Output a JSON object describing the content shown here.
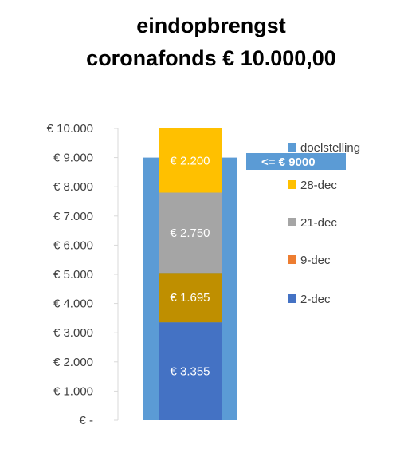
{
  "title_line1": "eindopbrengst",
  "title_line2": "coronafonds € 10.000,00",
  "target_annotation": "<= € 9000",
  "chart_data": {
    "type": "bar",
    "stacked": true,
    "title": "eindopbrengst coronafonds € 10.000,00",
    "ylim": [
      0,
      10000
    ],
    "y_ticks": [
      0,
      1000,
      2000,
      3000,
      4000,
      5000,
      6000,
      7000,
      8000,
      9000,
      10000
    ],
    "y_tick_labels": [
      "€ -",
      "€ 1.000",
      "€ 2.000",
      "€ 3.000",
      "€ 4.000",
      "€ 5.000",
      "€ 6.000",
      "€ 7.000",
      "€ 8.000",
      "€ 9.000",
      "€ 10.000"
    ],
    "legend_position": "right",
    "target": {
      "name": "doelstelling",
      "value": 9000,
      "color": "#5B9BD5"
    },
    "series": [
      {
        "name": "2-dec",
        "value": 3355,
        "label": "€ 3.355",
        "color": "#4472C4"
      },
      {
        "name": "9-dec",
        "value": 1695,
        "label": "€ 1.695",
        "color": "#BF8F00",
        "legend_color": "#ED7D31"
      },
      {
        "name": "21-dec",
        "value": 2750,
        "label": "€ 2.750",
        "color": "#A5A5A5"
      },
      {
        "name": "28-dec",
        "value": 2200,
        "label": "€ 2.200",
        "color": "#FFC000"
      }
    ],
    "legend": [
      {
        "name": "doelstelling",
        "color": "#5B9BD5"
      },
      {
        "name": "28-dec",
        "color": "#FFC000"
      },
      {
        "name": "21-dec",
        "color": "#A5A5A5"
      },
      {
        "name": "9-dec",
        "color": "#ED7D31"
      },
      {
        "name": "2-dec",
        "color": "#4472C4"
      }
    ]
  }
}
